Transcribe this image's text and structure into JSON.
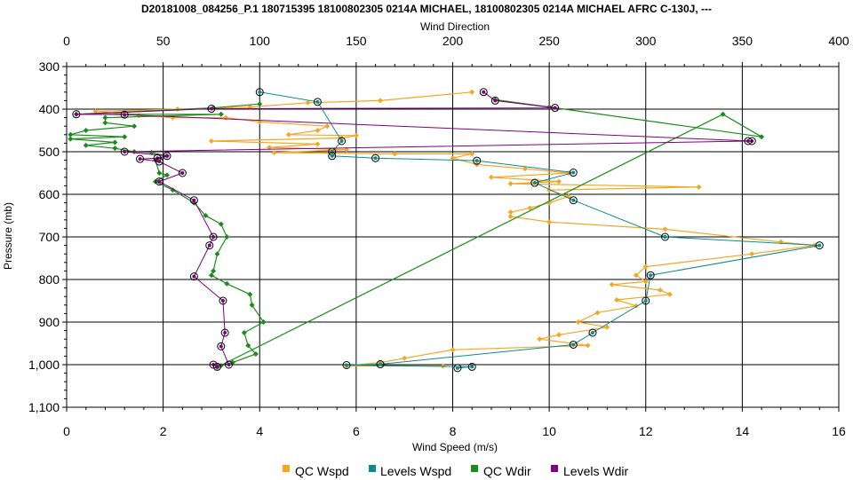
{
  "chart_data": {
    "type": "scatter",
    "title": "D20181008_084256_P.1 180715395 18100802305 0214A MICHAEL, 18100802305 0214A MICHAEL AFRC C-130J, ---",
    "top_axis": {
      "label": "Wind Direction",
      "range": [
        0,
        400
      ],
      "ticks": [
        "0",
        "50",
        "100",
        "150",
        "200",
        "250",
        "300",
        "350",
        "400"
      ]
    },
    "bottom_axis": {
      "label": "Wind Speed (m/s)",
      "range": [
        0,
        16
      ],
      "ticks": [
        "0",
        "2",
        "4",
        "6",
        "8",
        "10",
        "12",
        "14",
        "16"
      ]
    },
    "left_axis": {
      "label": "Pressure (mb)",
      "range": [
        300,
        1100
      ],
      "inverted": true,
      "ticks": [
        "300",
        "400",
        "500",
        "600",
        "700",
        "800",
        "900",
        "1,000",
        "1,100"
      ]
    },
    "grid": true,
    "legend_position": "bottom",
    "series": [
      {
        "name": "QC Wspd",
        "color": "#f5a623",
        "axis": "bottom",
        "points": [
          [
            8.4,
            360
          ],
          [
            6.5,
            380
          ],
          [
            5.0,
            385
          ],
          [
            3.8,
            395
          ],
          [
            2.3,
            400
          ],
          [
            0.6,
            405
          ],
          [
            1.5,
            415
          ],
          [
            2.2,
            420
          ],
          [
            3.3,
            420
          ],
          [
            4.0,
            430
          ],
          [
            5.4,
            440
          ],
          [
            5.2,
            450
          ],
          [
            4.6,
            460
          ],
          [
            6.0,
            462
          ],
          [
            5.7,
            468
          ],
          [
            3.0,
            475
          ],
          [
            5.2,
            482
          ],
          [
            4.2,
            490
          ],
          [
            5.8,
            495
          ],
          [
            4.3,
            502
          ],
          [
            6.8,
            505
          ],
          [
            8.4,
            505
          ],
          [
            8.0,
            515
          ],
          [
            8.5,
            530
          ],
          [
            9.5,
            540
          ],
          [
            10.4,
            550
          ],
          [
            8.8,
            560
          ],
          [
            10.2,
            570
          ],
          [
            9.2,
            575
          ],
          [
            13.1,
            583
          ],
          [
            10.0,
            590
          ],
          [
            10.4,
            605
          ],
          [
            10.0,
            620
          ],
          [
            9.6,
            632
          ],
          [
            9.2,
            642
          ],
          [
            9.2,
            652
          ],
          [
            10.0,
            665
          ],
          [
            12.4,
            682
          ],
          [
            14.8,
            712
          ],
          [
            15.5,
            720
          ],
          [
            14.2,
            740
          ],
          [
            12.0,
            770
          ],
          [
            11.8,
            790
          ],
          [
            12.0,
            805
          ],
          [
            11.3,
            812
          ],
          [
            12.3,
            825
          ],
          [
            12.5,
            835
          ],
          [
            11.4,
            848
          ],
          [
            11.8,
            862
          ],
          [
            11.0,
            878
          ],
          [
            10.6,
            900
          ],
          [
            11.2,
            912
          ],
          [
            10.2,
            930
          ],
          [
            9.8,
            940
          ],
          [
            10.8,
            955
          ],
          [
            8.0,
            965
          ],
          [
            7.0,
            985
          ],
          [
            6.5,
            995
          ],
          [
            5.8,
            1003
          ],
          [
            7.8,
            1003
          ]
        ]
      },
      {
        "name": "Levels Wspd",
        "color": "#0e8a8a",
        "axis": "bottom",
        "points": [
          [
            4.0,
            360
          ],
          [
            5.2,
            383
          ],
          [
            5.7,
            475
          ],
          [
            5.5,
            500
          ],
          [
            5.5,
            510
          ],
          [
            6.4,
            515
          ],
          [
            8.5,
            521
          ],
          [
            10.5,
            549
          ],
          [
            9.7,
            573
          ],
          [
            10.5,
            614
          ],
          [
            12.4,
            700
          ],
          [
            15.6,
            720
          ],
          [
            12.1,
            790
          ],
          [
            12.0,
            850
          ],
          [
            10.9,
            925
          ],
          [
            10.5,
            953
          ],
          [
            6.5,
            999
          ],
          [
            5.8,
            1001
          ],
          [
            8.4,
            1005
          ],
          [
            8.1,
            1008
          ]
        ]
      },
      {
        "name": "QC Wdir",
        "color": "#1a8c1a",
        "axis": "top",
        "points": [
          [
            100,
            388
          ],
          [
            76,
            397
          ],
          [
            5,
            412
          ],
          [
            80,
            412
          ],
          [
            20,
            420
          ],
          [
            20,
            432
          ],
          [
            35,
            440
          ],
          [
            10,
            450
          ],
          [
            2,
            460
          ],
          [
            30,
            465
          ],
          [
            2,
            470
          ],
          [
            25,
            478
          ],
          [
            10,
            485
          ],
          [
            25,
            492
          ],
          [
            35,
            500
          ],
          [
            44,
            502
          ],
          [
            52,
            510
          ],
          [
            46,
            520
          ],
          [
            48,
            550
          ],
          [
            52,
            555
          ],
          [
            46,
            570
          ],
          [
            55,
            590
          ],
          [
            66,
            620
          ],
          [
            72,
            650
          ],
          [
            80,
            670
          ],
          [
            83,
            700
          ],
          [
            78,
            740
          ],
          [
            76,
            780
          ],
          [
            75,
            790
          ],
          [
            83,
            810
          ],
          [
            95,
            835
          ],
          [
            96,
            860
          ],
          [
            102,
            900
          ],
          [
            92,
            925
          ],
          [
            94,
            955
          ],
          [
            98,
            975
          ],
          [
            86,
            995
          ],
          [
            80,
            1002
          ],
          [
            78,
            1006
          ],
          [
            340,
            412
          ],
          [
            360,
            465
          ],
          [
            250,
            395
          ],
          [
            222,
            378
          ]
        ]
      },
      {
        "name": "Levels Wdir",
        "color": "#800080",
        "axis": "top",
        "points": [
          [
            216,
            360
          ],
          [
            222,
            380
          ],
          [
            253,
            397
          ],
          [
            75,
            399
          ],
          [
            5,
            412
          ],
          [
            30,
            413
          ],
          [
            355,
            475
          ],
          [
            353,
            475
          ],
          [
            30,
            500
          ],
          [
            52,
            510
          ],
          [
            47,
            515
          ],
          [
            38,
            517
          ],
          [
            48,
            523
          ],
          [
            60,
            550
          ],
          [
            48,
            570
          ],
          [
            66,
            614
          ],
          [
            76,
            700
          ],
          [
            74,
            720
          ],
          [
            66,
            793
          ],
          [
            81,
            850
          ],
          [
            82,
            925
          ],
          [
            80,
            957
          ],
          [
            84,
            1000
          ],
          [
            76,
            1000
          ],
          [
            78,
            1005
          ]
        ]
      }
    ]
  },
  "legend": [
    {
      "label": "QC Wspd",
      "color": "#f5a623"
    },
    {
      "label": "Levels Wspd",
      "color": "#0e8a8a"
    },
    {
      "label": "QC Wdir",
      "color": "#1a8c1a"
    },
    {
      "label": "Levels Wdir",
      "color": "#800080"
    }
  ]
}
